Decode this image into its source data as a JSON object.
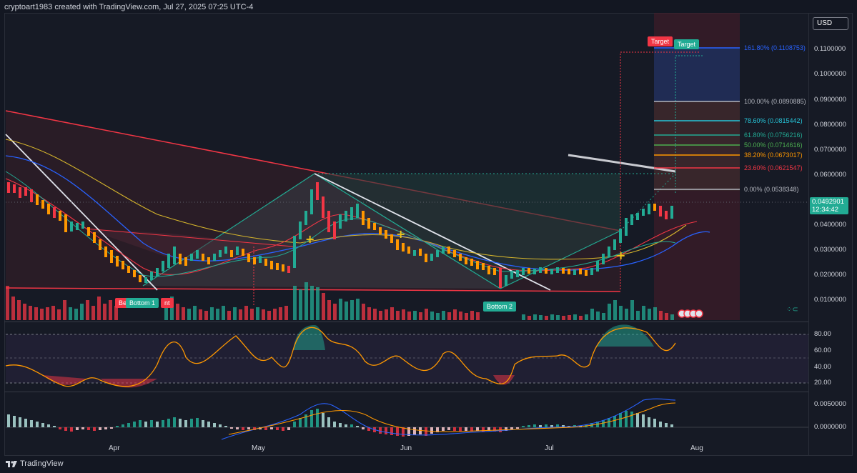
{
  "header": {
    "attribution": "cryptoart1983 created with TradingView.com, Jul 27, 2025 07:25 UTC-4"
  },
  "currency_button": "USD",
  "price_axis": [
    "0.1100000",
    "0.1000000",
    "0.0900000",
    "0.0800000",
    "0.0700000",
    "0.0600000",
    "0.0400000",
    "0.0300000",
    "0.0200000",
    "0.0100000"
  ],
  "rsi_axis": [
    "80.00",
    "60.00",
    "40.00",
    "20.00"
  ],
  "macd_axis": [
    "0.0050000",
    "0.0000000"
  ],
  "time_axis": [
    "Apr",
    "May",
    "Jun",
    "Jul",
    "Aug"
  ],
  "last_price": {
    "value": "0.0492901",
    "countdown": "12:34:42",
    "color": "#22ab94"
  },
  "fib_levels": [
    {
      "label": "161.80% (0.1108753)",
      "color": "#2962ff"
    },
    {
      "label": "100.00% (0.0890885)",
      "color": "#b2b5be"
    },
    {
      "label": "78.60% (0.0815442)",
      "color": "#26c6da"
    },
    {
      "label": "61.80% (0.0756216)",
      "color": "#22ab94"
    },
    {
      "label": "50.00% (0.0714616)",
      "color": "#4caf50"
    },
    {
      "label": "38.20% (0.0673017)",
      "color": "#ff9800"
    },
    {
      "label": "23.60% (0.0621547)",
      "color": "#f23645"
    },
    {
      "label": "0.00% (0.0538348)",
      "color": "#b2b5be"
    }
  ],
  "annotations": {
    "target_red": "Target",
    "target_green": "Target",
    "bottom_1": "Bottom 1",
    "bottom_2": "Bottom 2",
    "bottom_1_partial_left": "Be",
    "bottom_1_partial_right": "nt"
  },
  "footer": {
    "brand": "TradingView"
  },
  "colors": {
    "up": "#22ab94",
    "down": "#f23645",
    "orange": "#ff9800",
    "bg": "#131722"
  }
}
